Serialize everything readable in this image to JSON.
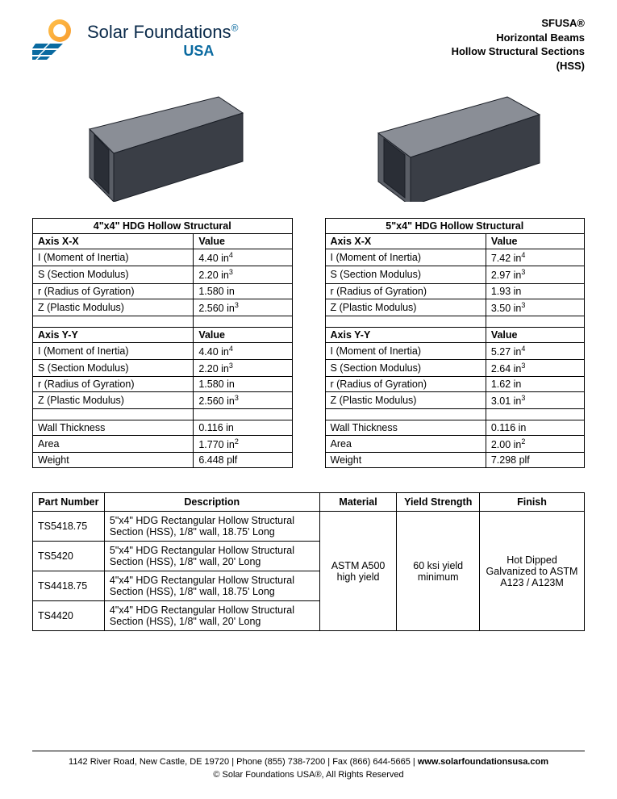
{
  "header": {
    "company_name": "Solar Foundations",
    "reg_mark": "®",
    "usa": "USA",
    "right_lines": [
      "SFUSA®",
      "Horizontal Beams",
      "Hollow Structural Sections",
      "(HSS)"
    ],
    "logo_colors": {
      "orange": "#f79b2e",
      "blue": "#0a6aa0",
      "dark": "#0a2a4a"
    }
  },
  "beam_render": {
    "face_color": "#5a5e66",
    "top_color": "#8a8e96",
    "side_color": "#3a3e46",
    "hole_color": "#2a2e36",
    "stroke": "#1a1e26"
  },
  "spec_tables": [
    {
      "title": "4\"x4\" HDG Hollow Structural",
      "col1_width": "62%",
      "col2_width": "38%",
      "sections": [
        {
          "header": [
            "Axis X-X",
            "Value"
          ],
          "rows": [
            [
              "I (Moment of Inertia)",
              "4.40 in",
              "4"
            ],
            [
              "S (Section Modulus)",
              "2.20 in",
              "3"
            ],
            [
              "r (Radius of Gyration)",
              "1.580 in",
              ""
            ],
            [
              "Z (Plastic Modulus)",
              "2.560 in",
              "3"
            ]
          ]
        },
        {
          "header": [
            "Axis Y-Y",
            "Value"
          ],
          "rows": [
            [
              "I (Moment of Inertia)",
              "4.40 in",
              "4"
            ],
            [
              "S (Section Modulus)",
              "2.20 in",
              "3"
            ],
            [
              "r (Radius of Gyration)",
              "1.580 in",
              ""
            ],
            [
              "Z (Plastic Modulus)",
              "2.560 in",
              "3"
            ]
          ]
        },
        {
          "header": null,
          "rows": [
            [
              "Wall Thickness",
              "0.116 in",
              ""
            ],
            [
              "Area",
              "1.770 in",
              "2"
            ],
            [
              "Weight",
              "6.448 plf",
              ""
            ]
          ]
        }
      ]
    },
    {
      "title": "5\"x4\" HDG Hollow Structural",
      "col1_width": "62%",
      "col2_width": "38%",
      "sections": [
        {
          "header": [
            "Axis X-X",
            "Value"
          ],
          "rows": [
            [
              "I (Moment of Inertia)",
              "7.42 in",
              "4"
            ],
            [
              "S (Section Modulus)",
              "2.97 in",
              "3"
            ],
            [
              "r (Radius of Gyration)",
              "1.93 in",
              ""
            ],
            [
              "Z (Plastic Modulus)",
              "3.50 in",
              "3"
            ]
          ]
        },
        {
          "header": [
            "Axis Y-Y",
            "Value"
          ],
          "rows": [
            [
              "I (Moment of Inertia)",
              "5.27 in",
              "4"
            ],
            [
              "S (Section Modulus)",
              "2.64 in",
              "3"
            ],
            [
              "r (Radius of Gyration)",
              "1.62 in",
              ""
            ],
            [
              "Z (Plastic Modulus)",
              "3.01 in",
              "3"
            ]
          ]
        },
        {
          "header": null,
          "rows": [
            [
              "Wall Thickness",
              "0.116 in",
              ""
            ],
            [
              "Area",
              "2.00 in",
              "2"
            ],
            [
              "Weight",
              "7.298 plf",
              ""
            ]
          ]
        }
      ]
    }
  ],
  "parts_table": {
    "columns": [
      "Part Number",
      "Description",
      "Material",
      "Yield Strength",
      "Finish"
    ],
    "col_widths": [
      "13%",
      "39%",
      "14%",
      "15%",
      "19%"
    ],
    "material": "ASTM A500 high yield",
    "yield": "60 ksi yield minimum",
    "finish": "Hot Dipped Galvanized to ASTM A123 / A123M",
    "rows": [
      {
        "pn": "TS5418.75",
        "desc": "5\"x4\" HDG Rectangular Hollow Structural Section (HSS), 1/8\" wall, 18.75' Long"
      },
      {
        "pn": "TS5420",
        "desc": "5\"x4\" HDG Rectangular Hollow Structural Section (HSS), 1/8\" wall, 20' Long"
      },
      {
        "pn": "TS4418.75",
        "desc": "4\"x4\" HDG Rectangular Hollow Structural Section (HSS), 1/8\" wall, 18.75' Long"
      },
      {
        "pn": "TS4420",
        "desc": "4\"x4\" HDG Rectangular Hollow Structural Section (HSS), 1/8\" wall, 20' Long"
      }
    ]
  },
  "footer": {
    "address": "1142 River Road, New Castle, DE 19720",
    "phone": "Phone (855) 738-7200",
    "fax": "Fax (866) 644-5665",
    "web": "www.solarfoundationsusa.com",
    "copyright": "© Solar Foundations USA®, All Rights Reserved",
    "sep": "   |   "
  }
}
